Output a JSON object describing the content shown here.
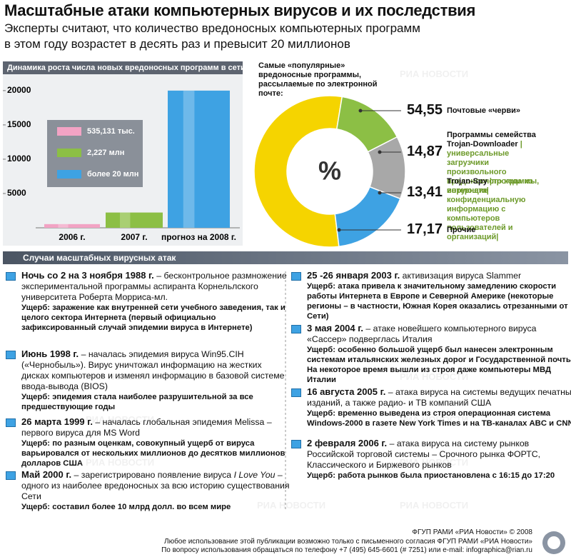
{
  "header": {
    "title": "Масштабные атаки компьютерных вирусов и их последствия",
    "subtitle": [
      "Эксперты считают, что количество вредоносных компьютерных программ",
      "в этом году возрастет в десять раз и превысит 20 миллионов"
    ]
  },
  "watermark": "РИА НОВОСТИ",
  "chart_data": [
    {
      "type": "bar",
      "title": "Динамика роста числа новых вредоносных программ в сети",
      "categories": [
        "2006 г.",
        "2007 г.",
        "прогноз на 2008 г."
      ],
      "values": [
        535.131,
        2227,
        20000
      ],
      "value_labels": [
        "535,131 тыс.",
        "2,227 млн",
        "более 20 млн"
      ],
      "colors": [
        "#f2a3c4",
        "#8cbf45",
        "#3ea2e3"
      ],
      "ylim": [
        0,
        20300
      ],
      "yticks": [
        5000,
        10000,
        15000,
        20000
      ],
      "grid": false
    },
    {
      "type": "donut",
      "title": "Самые «популярные» вредоносные программы, рассылаемые по электронной почте:",
      "center_label": "%",
      "categories": [
        "Почтовые «черви»",
        "Программы семейства Trojan-Downloader |универсальные загрузчики произвольного вредоносного кода из интернета|",
        "Trojan-Spy |программы, ворующие конфиденциальную информацию с компьютеров пользователей и организаций|",
        "Прочие"
      ],
      "values": [
        54.55,
        14.87,
        13.41,
        17.17
      ],
      "value_labels": [
        "54,55",
        "14,87",
        "13,41",
        "17,17"
      ],
      "colors": [
        "#f5d400",
        "#8cbf45",
        "#a8a8a8",
        "#3ea2e3"
      ]
    }
  ],
  "section": {
    "title": "Случаи масштабных вирусных атак",
    "events": [
      {
        "date": "Ночь со 2 на 3 ноября 1988 г.",
        "text": " – бесконтрольное размножение экспериментальной программы аспиранта Корнельлского университета Роберта Морриса-мл.",
        "damage": "Ущерб: заражение как внутренней сети учебного заведения, так и целого сектора Интернета (первый официально зафиксированный случай эпидемии вируса в Интернете)"
      },
      {
        "date": "Июнь 1998 г.",
        "text": " – началась эпидемия вируса Win95.CIH («Чернобыль»). Вирус уничтожал информацию на жестких дисках компьютеров и изменял информацию в базовой системе ввода-вывода (BIOS)",
        "damage": "Ущерб: эпидемия стала наиболее разрушительной за все предшествующие годы"
      },
      {
        "date": "26 марта 1999 г.",
        "text": " – началась глобальная эпидемия Melissa – первого вируса для MS Word",
        "damage": "Ущерб: по разным оценкам, совокупный ущерб от вируса варьировался от нескольких миллионов до десятков миллионов долларов США"
      },
      {
        "date": "Май 2000 г.",
        "text": " – зарегистрировано появление вируса ",
        "italic": "I Love You",
        "text_after": " – одного из наиболее вредоносных за всю историю существования Сети",
        "damage": "Ущерб: составил более 10 млрд долл. во всем мире"
      },
      {
        "date": "25 -26 января 2003 г.",
        "text": "  активизация вируса Slammer",
        "damage": "Ущерб: атака привела к значительному замедлению скорости работы Интернета в Европе и Северной Америке (некоторые регионы – в частности, Южная Корея  оказались отрезанными от Сети)"
      },
      {
        "date": "3 мая 2004 г.",
        "text": " – атаке новейшего компьютерного вируса «Сассер» подверглась Италия",
        "damage": "Ущерб: особенно большой ущерб был нанесен электронным системам итальянских железных дорог и Государственной почты. На некоторое время вышли из строя даже компьютеры МВД Италии"
      },
      {
        "date": "16 августа 2005 г.",
        "text": " – атака вируса на системы ведущих печатных изданий, а также радио- и ТВ компаний США",
        "damage": "Ущерб: временно выведена из строя операционная система Windows-2000 в газете New York Times и на ТВ-каналах ABC и CNN"
      },
      {
        "date": "2 февраля 2006 г.",
        "text": " – атака вируса на систему рынков Российской торговой системы – Срочного рынка ФОРТС, Классического и Биржевого рынков",
        "damage": "Ущерб: работа рынков была приостановлена с 16:15 до 17:20"
      }
    ]
  },
  "footer": {
    "copyright": "ФГУП РАМИ «РИА Новости» © 2008",
    "lines": [
      "Любое использование этой публикации возможно только с письменного согласия  ФГУП РАМИ «РИА Новости»",
      "По вопросу использования обращаться по телефону +7 (495) 645-6601 (# 7251) или e-mail: infographica@rian.ru"
    ]
  }
}
